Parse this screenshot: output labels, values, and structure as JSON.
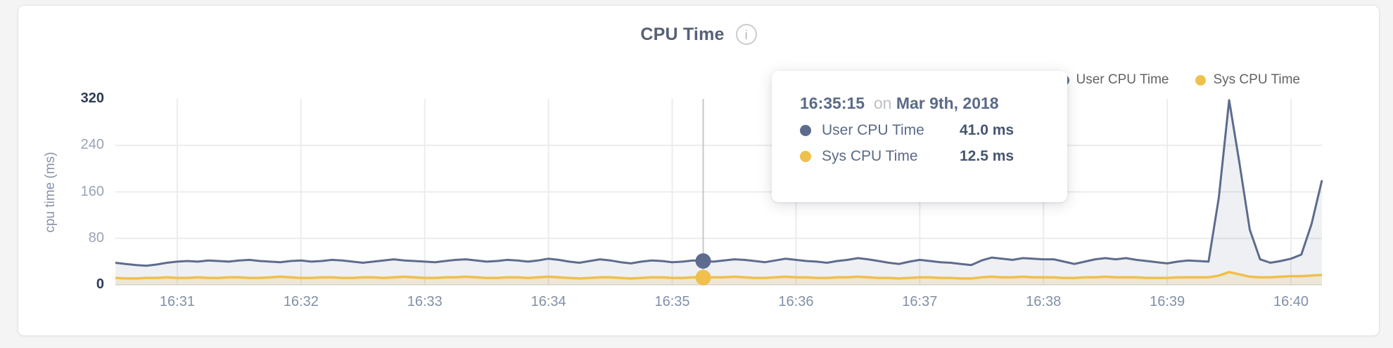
{
  "header": {
    "title": "CPU Time",
    "info_icon_glyph": "i"
  },
  "legend": {
    "items": [
      {
        "label": "User CPU Time",
        "color": "#5d6c8e"
      },
      {
        "label": "Sys CPU Time",
        "color": "#eec04d"
      }
    ]
  },
  "tooltip": {
    "time": "16:35:15",
    "connector": "on",
    "date": "Mar 9th, 2018",
    "rows": [
      {
        "label": "User CPU Time",
        "value": "41.0 ms",
        "color": "#5d6c8e"
      },
      {
        "label": "Sys CPU Time",
        "value": "12.5 ms",
        "color": "#eec04d"
      }
    ]
  },
  "colors": {
    "user_line": "#5d6c8e",
    "sys_line": "#f0bf4c",
    "user_fill": "rgba(93,108,140,0.10)",
    "sys_fill": "rgba(238,189,74,0.16)",
    "grid": "#ececec",
    "baseline": "#e6e6e6",
    "crosshair": "#c7c7c7",
    "ytick_strong": "#2e3c55",
    "ytick_mid": "#9aa4b6",
    "xtick": "#8090a6"
  },
  "chart_data": {
    "type": "area",
    "title": "CPU Time",
    "ylabel": "cpu time (ms)",
    "xlabel": "",
    "ylim": [
      0,
      320
    ],
    "yticks": [
      0,
      80,
      160,
      240,
      320
    ],
    "grid": true,
    "legend_position": "top-right",
    "x_start": "16:30:30",
    "x_end": "16:40:15",
    "step_seconds": 5,
    "xticks": [
      "16:31",
      "16:32",
      "16:33",
      "16:34",
      "16:35",
      "16:36",
      "16:37",
      "16:38",
      "16:39",
      "16:40"
    ],
    "marker": {
      "time": "16:35:15",
      "index": 57,
      "user": 41.0,
      "sys": 12.5,
      "date": "Mar 9th, 2018"
    },
    "series": [
      {
        "name": "User CPU Time",
        "color": "#5d6c8e",
        "unit": "ms",
        "values": [
          38,
          36,
          34,
          33,
          35,
          38,
          40,
          41,
          40,
          42,
          41,
          40,
          42,
          43,
          41,
          40,
          39,
          41,
          42,
          40,
          41,
          43,
          42,
          40,
          38,
          40,
          42,
          44,
          42,
          41,
          40,
          39,
          41,
          43,
          44,
          42,
          40,
          41,
          43,
          42,
          40,
          42,
          45,
          43,
          40,
          38,
          41,
          44,
          42,
          39,
          37,
          40,
          42,
          41,
          39,
          40,
          42,
          41,
          40,
          42,
          44,
          43,
          41,
          39,
          42,
          45,
          43,
          41,
          40,
          38,
          41,
          43,
          46,
          44,
          41,
          38,
          36,
          40,
          43,
          41,
          39,
          38,
          36,
          34,
          42,
          47,
          45,
          43,
          46,
          45,
          44,
          44,
          40,
          36,
          40,
          44,
          46,
          44,
          46,
          43,
          41,
          39,
          37,
          40,
          42,
          41,
          40,
          150,
          318,
          210,
          95,
          44,
          38,
          41,
          45,
          52,
          105,
          180
        ]
      },
      {
        "name": "Sys CPU Time",
        "color": "#f0bf4c",
        "unit": "ms",
        "values": [
          12,
          11,
          11,
          12,
          12,
          13,
          12,
          12,
          13,
          12,
          12,
          13,
          13,
          12,
          12,
          13,
          14,
          13,
          12,
          12,
          13,
          13,
          12,
          12,
          13,
          13,
          12,
          13,
          14,
          13,
          12,
          12,
          13,
          13,
          14,
          13,
          12,
          12,
          13,
          13,
          12,
          13,
          14,
          13,
          12,
          11,
          12,
          13,
          13,
          12,
          11,
          12,
          13,
          13,
          12,
          12,
          13,
          12.5,
          13,
          13,
          14,
          13,
          12,
          12,
          13,
          14,
          13,
          13,
          12,
          12,
          13,
          13,
          14,
          13,
          12,
          12,
          11,
          12,
          13,
          13,
          12,
          12,
          11,
          11,
          13,
          14,
          13,
          13,
          14,
          13,
          13,
          13,
          12,
          12,
          13,
          13,
          14,
          13,
          13,
          13,
          12,
          12,
          12,
          13,
          13,
          13,
          13,
          16,
          22,
          18,
          14,
          13,
          13,
          14,
          15,
          15,
          16,
          17
        ]
      }
    ]
  }
}
